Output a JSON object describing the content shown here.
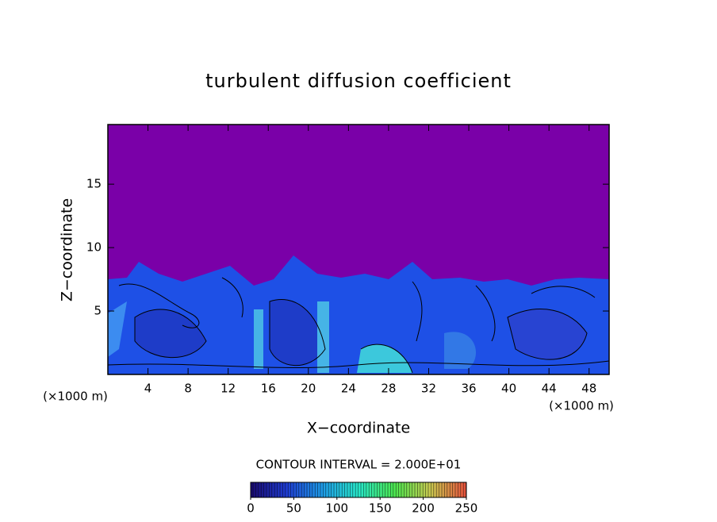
{
  "chart_data": {
    "type": "contour",
    "title": "turbulent diffusion coefficient",
    "x_label": "X−coordinate",
    "y_label": "Z−coordinate",
    "x_unit_label": "(×1000 m)",
    "y_unit_label": "(×1000 m)",
    "xlim": [
      0,
      50
    ],
    "xticks": [
      4,
      8,
      12,
      16,
      20,
      24,
      28,
      32,
      36,
      40,
      44,
      48
    ],
    "ylim": [
      0,
      19.7
    ],
    "yticks": [
      5,
      10,
      15
    ],
    "contour_interval_label": "CONTOUR INTERVAL = 2.000E+01",
    "colorbar": {
      "lim": [
        0,
        250
      ],
      "ticks": [
        0,
        50,
        100,
        150,
        200,
        250
      ],
      "colors": [
        "#1a0a6e",
        "#1e3cd2",
        "#1e9be6",
        "#28e6c8",
        "#4ce650",
        "#c8c850",
        "#e6503c"
      ]
    }
  }
}
